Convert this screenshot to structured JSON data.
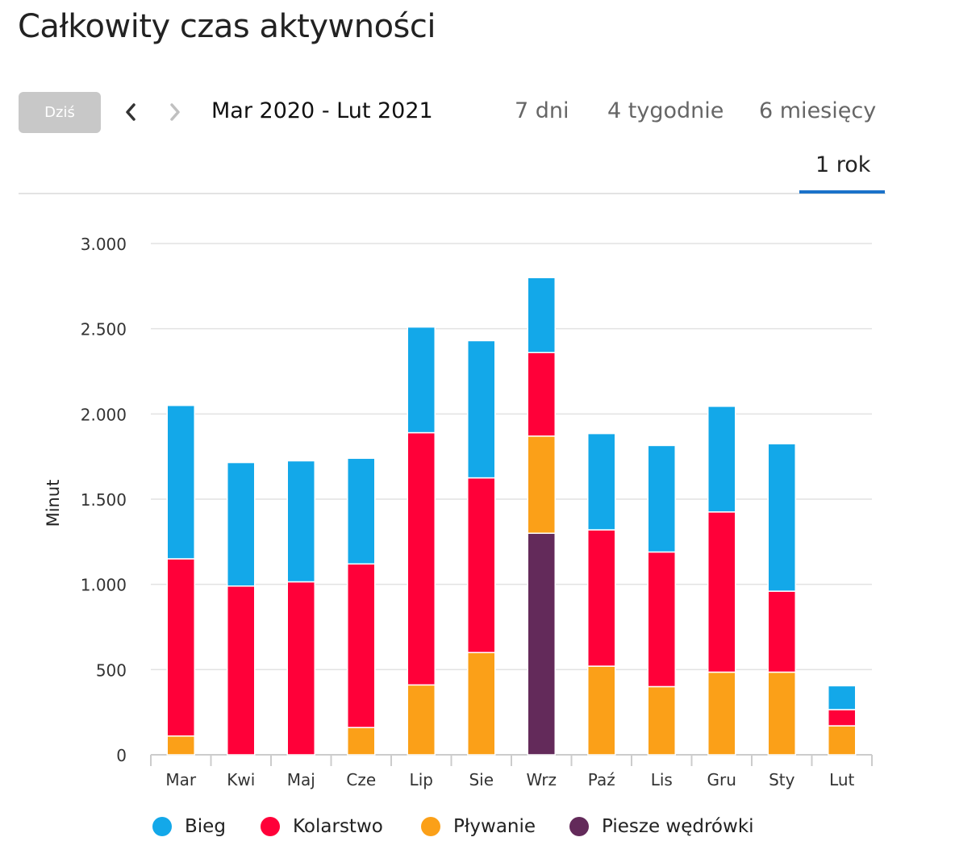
{
  "page": {
    "title": "Całkowity czas aktywności"
  },
  "controls": {
    "today_label": "Dziś",
    "date_range": "Mar 2020 - Lut 2021",
    "periods": [
      "7 dni",
      "4 tygodnie",
      "6 miesięcy",
      "1 rok"
    ],
    "active_period": "1 rok"
  },
  "colors": {
    "Bieg": "#13a8e9",
    "Kolarstwo": "#ff0039",
    "Pływanie": "#fba018",
    "Piesze wędrówki": "#632a5a",
    "accent": "#1b72c9"
  },
  "chart_data": {
    "type": "bar",
    "stacked": true,
    "title": "",
    "xlabel": "",
    "ylabel": "Minut",
    "ylim": [
      0,
      3000
    ],
    "yticks": [
      0,
      500,
      1000,
      1500,
      2000,
      2500,
      3000
    ],
    "ytick_labels": [
      "0",
      "500",
      "1.000",
      "1.500",
      "2.000",
      "2.500",
      "3.000"
    ],
    "categories": [
      "Mar",
      "Kwi",
      "Maj",
      "Cze",
      "Lip",
      "Sie",
      "Wrz",
      "Paź",
      "Lis",
      "Gru",
      "Sty",
      "Lut"
    ],
    "series": [
      {
        "name": "Piesze wędrówki",
        "values": [
          0,
          0,
          0,
          0,
          0,
          0,
          1300,
          0,
          0,
          0,
          0,
          0
        ]
      },
      {
        "name": "Pływanie",
        "values": [
          110,
          0,
          0,
          160,
          410,
          600,
          570,
          520,
          400,
          485,
          485,
          170
        ]
      },
      {
        "name": "Kolarstwo",
        "values": [
          1040,
          990,
          1015,
          960,
          1480,
          1025,
          490,
          800,
          790,
          940,
          475,
          95
        ]
      },
      {
        "name": "Bieg",
        "values": [
          900,
          725,
          710,
          620,
          620,
          805,
          440,
          565,
          625,
          620,
          865,
          140
        ]
      }
    ],
    "legend": [
      "Bieg",
      "Kolarstwo",
      "Pływanie",
      "Piesze wędrówki"
    ],
    "legend_position": "bottom",
    "grid": true
  }
}
